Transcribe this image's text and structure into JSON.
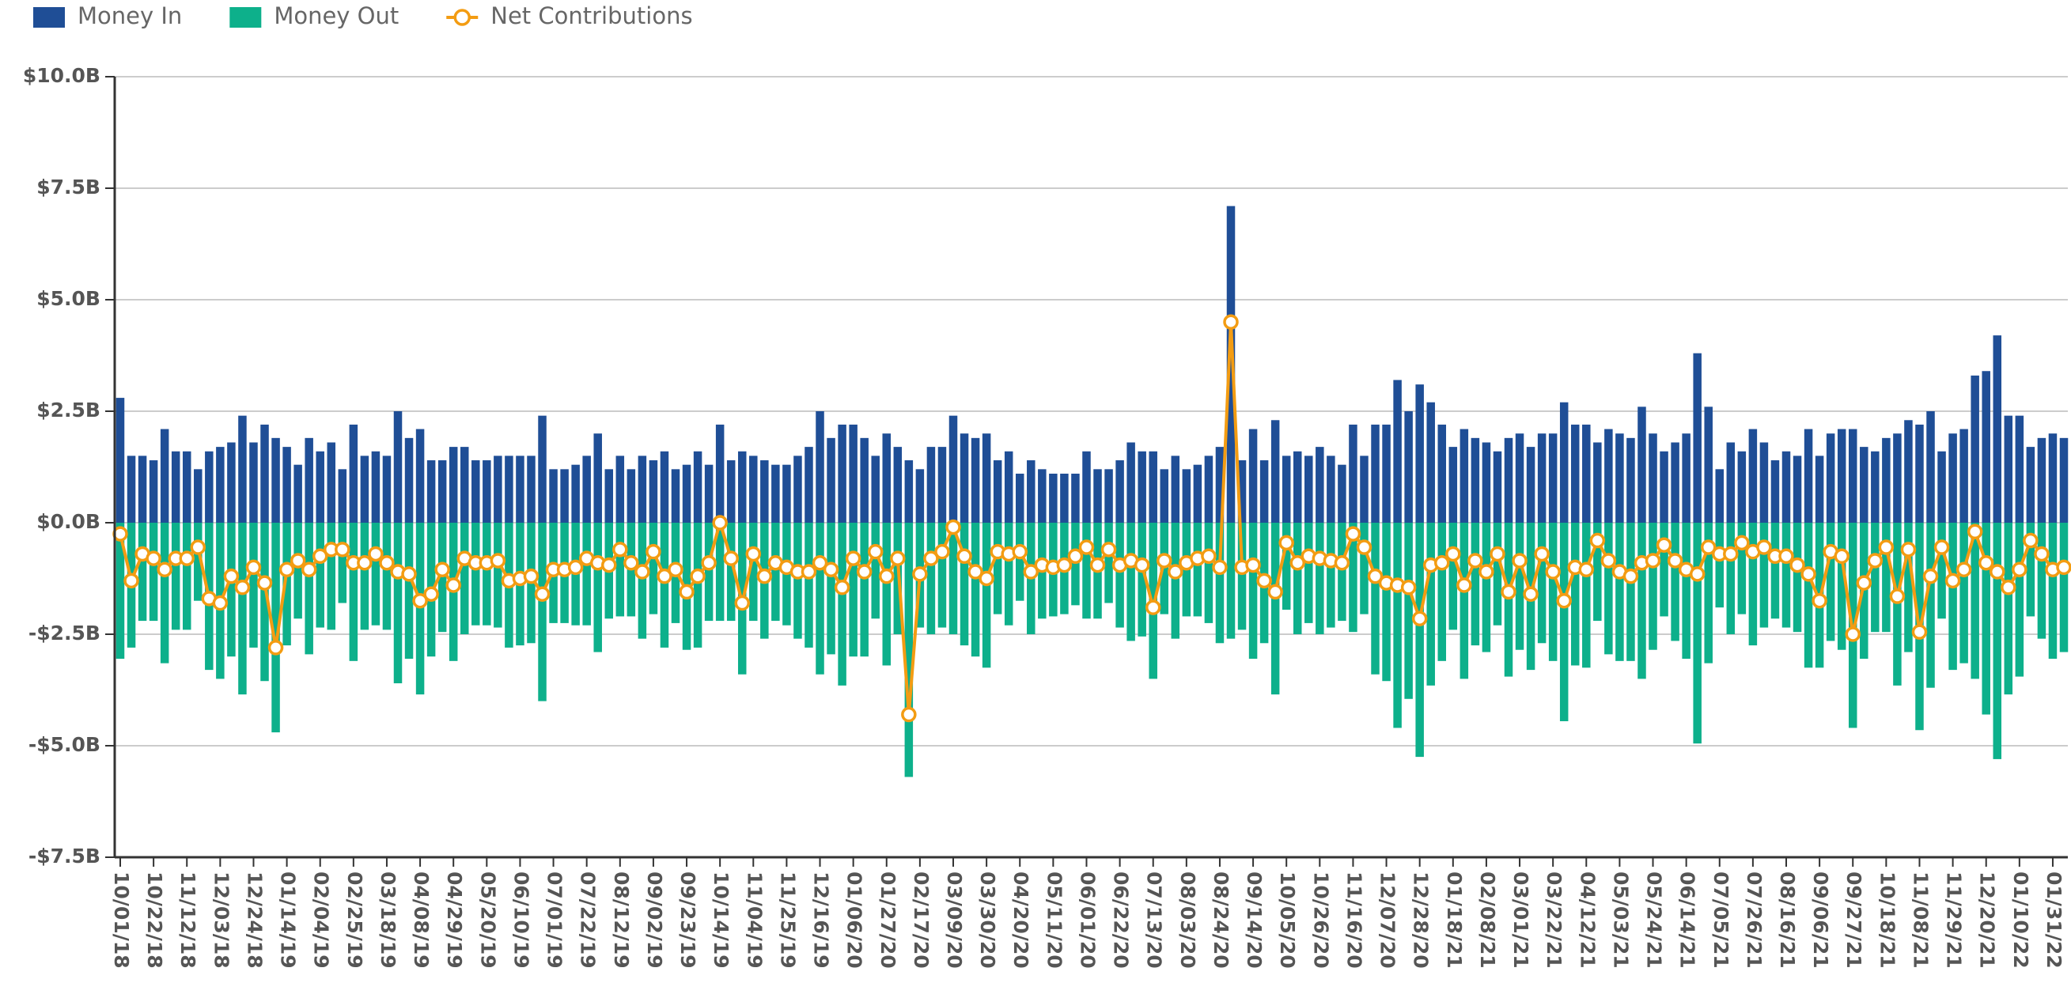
{
  "chart_data": {
    "type": "bar",
    "categories": [
      "10/01/18",
      null,
      null,
      "10/22/18",
      null,
      null,
      "11/12/18",
      null,
      null,
      "12/03/18",
      null,
      null,
      "12/24/18",
      null,
      null,
      "01/14/19",
      null,
      null,
      "02/04/19",
      null,
      null,
      "02/25/19",
      null,
      null,
      "03/18/19",
      null,
      null,
      "04/08/19",
      null,
      null,
      "04/29/19",
      null,
      null,
      "05/20/19",
      null,
      null,
      "06/10/19",
      null,
      null,
      "07/01/19",
      null,
      null,
      "07/22/19",
      null,
      null,
      "08/12/19",
      null,
      null,
      "09/02/19",
      null,
      null,
      "09/23/19",
      null,
      null,
      "10/14/19",
      null,
      null,
      "11/04/19",
      null,
      null,
      "11/25/19",
      null,
      null,
      "12/16/19",
      null,
      null,
      "01/06/20",
      null,
      null,
      "01/27/20",
      null,
      null,
      "02/17/20",
      null,
      null,
      "03/09/20",
      null,
      null,
      "03/30/20",
      null,
      null,
      "04/20/20",
      null,
      null,
      "05/11/20",
      null,
      null,
      "06/01/20",
      null,
      null,
      "06/22/20",
      null,
      null,
      "07/13/20",
      null,
      null,
      "08/03/20",
      null,
      null,
      "08/24/20",
      null,
      null,
      "09/14/20",
      null,
      null,
      "10/05/20",
      null,
      null,
      "10/26/20",
      null,
      null,
      "11/16/20",
      null,
      null,
      "12/07/20",
      null,
      null,
      "12/28/20",
      null,
      null,
      "01/18/21",
      null,
      null,
      "02/08/21",
      null,
      null,
      "03/01/21",
      null,
      null,
      "03/22/21",
      null,
      null,
      "04/12/21",
      null,
      null,
      "05/03/21",
      null,
      null,
      "05/24/21",
      null,
      null,
      "06/14/21",
      null,
      null,
      "07/05/21",
      null,
      null,
      "07/26/21",
      null,
      null,
      "08/16/21",
      null,
      null,
      "09/06/21",
      null,
      null,
      "09/27/21",
      null,
      null,
      "10/18/21",
      null,
      null,
      "11/08/21",
      null,
      null,
      "11/29/21",
      null,
      null,
      "12/20/21",
      null,
      null,
      "01/10/22",
      null,
      null,
      "01/31/22",
      null
    ],
    "series": [
      {
        "name": "Money In",
        "color": "#1f4e96",
        "type": "bar",
        "values": [
          2.8,
          1.5,
          1.5,
          1.4,
          2.1,
          1.6,
          1.6,
          1.2,
          1.6,
          1.7,
          1.8,
          2.4,
          1.8,
          2.2,
          1.9,
          1.7,
          1.3,
          1.9,
          1.6,
          1.8,
          1.2,
          2.2,
          1.5,
          1.6,
          1.5,
          2.5,
          1.9,
          2.1,
          1.4,
          1.4,
          1.7,
          1.7,
          1.4,
          1.4,
          1.5,
          1.5,
          1.5,
          1.5,
          2.4,
          1.2,
          1.2,
          1.3,
          1.5,
          2.0,
          1.2,
          1.5,
          1.2,
          1.5,
          1.4,
          1.6,
          1.2,
          1.3,
          1.6,
          1.3,
          2.2,
          1.4,
          1.6,
          1.5,
          1.4,
          1.3,
          1.3,
          1.5,
          1.7,
          2.5,
          1.9,
          2.2,
          2.2,
          1.9,
          1.5,
          2.0,
          1.7,
          1.4,
          1.2,
          1.7,
          1.7,
          2.4,
          2.0,
          1.9,
          2.0,
          1.4,
          1.6,
          1.1,
          1.4,
          1.2,
          1.1,
          1.1,
          1.1,
          1.6,
          1.2,
          1.2,
          1.4,
          1.8,
          1.6,
          1.6,
          1.2,
          1.5,
          1.2,
          1.3,
          1.5,
          1.7,
          7.1,
          1.4,
          2.1,
          1.4,
          2.3,
          1.5,
          1.6,
          1.5,
          1.7,
          1.5,
          1.3,
          2.2,
          1.5,
          2.2,
          2.2,
          3.2,
          2.5,
          3.1,
          2.7,
          2.2,
          1.7,
          2.1,
          1.9,
          1.8,
          1.6,
          1.9,
          2.0,
          1.7,
          2.0,
          2.0,
          2.7,
          2.2,
          2.2,
          1.8,
          2.1,
          2.0,
          1.9,
          2.6,
          2.0,
          1.6,
          1.8,
          2.0,
          3.8,
          2.6,
          1.2,
          1.8,
          1.6,
          2.1,
          1.8,
          1.4,
          1.6,
          1.5,
          2.1,
          1.5,
          2.0,
          2.1,
          2.1,
          1.7,
          1.6,
          1.9,
          2.0,
          2.3,
          2.2,
          2.5,
          1.6,
          2.0,
          2.1,
          3.3,
          3.4,
          4.2,
          2.4,
          2.4,
          1.7,
          1.9,
          2.0,
          1.9
        ]
      },
      {
        "name": "Money Out",
        "color": "#0db08b",
        "type": "bar",
        "values": [
          -3.05,
          -2.8,
          -2.2,
          -2.2,
          -3.15,
          -2.4,
          -2.4,
          -1.75,
          -3.3,
          -3.5,
          -3.0,
          -3.85,
          -2.8,
          -3.55,
          -4.7,
          -2.75,
          -2.15,
          -2.95,
          -2.35,
          -2.4,
          -1.8,
          -3.1,
          -2.4,
          -2.3,
          -2.4,
          -3.6,
          -3.05,
          -3.85,
          -3.0,
          -2.45,
          -3.1,
          -2.5,
          -2.3,
          -2.3,
          -2.35,
          -2.8,
          -2.75,
          -2.7,
          -4.0,
          -2.25,
          -2.25,
          -2.3,
          -2.3,
          -2.9,
          -2.15,
          -2.1,
          -2.1,
          -2.6,
          -2.05,
          -2.8,
          -2.25,
          -2.85,
          -2.8,
          -2.2,
          -2.2,
          -2.2,
          -3.4,
          -2.2,
          -2.6,
          -2.2,
          -2.3,
          -2.6,
          -2.8,
          -3.4,
          -2.95,
          -3.65,
          -3.0,
          -3.0,
          -2.15,
          -3.2,
          -2.5,
          -5.7,
          -2.35,
          -2.5,
          -2.35,
          -2.5,
          -2.75,
          -3.0,
          -3.25,
          -2.05,
          -2.3,
          -1.75,
          -2.5,
          -2.15,
          -2.1,
          -2.05,
          -1.85,
          -2.15,
          -2.15,
          -1.8,
          -2.35,
          -2.65,
          -2.55,
          -3.5,
          -2.05,
          -2.6,
          -2.1,
          -2.1,
          -2.25,
          -2.7,
          -2.6,
          -2.4,
          -3.05,
          -2.7,
          -3.85,
          -1.95,
          -2.5,
          -2.25,
          -2.5,
          -2.35,
          -2.2,
          -2.45,
          -2.05,
          -3.4,
          -3.55,
          -4.6,
          -3.95,
          -5.25,
          -3.65,
          -3.1,
          -2.4,
          -3.5,
          -2.75,
          -2.9,
          -2.3,
          -3.45,
          -2.85,
          -3.3,
          -2.7,
          -3.1,
          -4.45,
          -3.2,
          -3.25,
          -2.2,
          -2.95,
          -3.1,
          -3.1,
          -3.5,
          -2.85,
          -2.1,
          -2.65,
          -3.05,
          -4.95,
          -3.15,
          -1.9,
          -2.5,
          -2.05,
          -2.75,
          -2.35,
          -2.15,
          -2.35,
          -2.45,
          -3.25,
          -3.25,
          -2.65,
          -2.85,
          -4.6,
          -3.05,
          -2.45,
          -2.45,
          -3.65,
          -2.9,
          -4.65,
          -3.7,
          -2.15,
          -3.3,
          -3.15,
          -3.5,
          -4.3,
          -5.3,
          -3.85,
          -3.45,
          -2.1,
          -2.6,
          -3.05,
          -2.9
        ]
      },
      {
        "name": "Net Contributions",
        "color": "#f39c12",
        "type": "line",
        "values": [
          -0.25,
          -1.3,
          -0.7,
          -0.8,
          -1.05,
          -0.8,
          -0.8,
          -0.55,
          -1.7,
          -1.8,
          -1.2,
          -1.45,
          -1.0,
          -1.35,
          -2.8,
          -1.05,
          -0.85,
          -1.05,
          -0.75,
          -0.6,
          -0.6,
          -0.9,
          -0.9,
          -0.7,
          -0.9,
          -1.1,
          -1.15,
          -1.75,
          -1.6,
          -1.05,
          -1.4,
          -0.8,
          -0.9,
          -0.9,
          -0.85,
          -1.3,
          -1.25,
          -1.2,
          -1.6,
          -1.05,
          -1.05,
          -1.0,
          -0.8,
          -0.9,
          -0.95,
          -0.6,
          -0.9,
          -1.1,
          -0.65,
          -1.2,
          -1.05,
          -1.55,
          -1.2,
          -0.9,
          0.0,
          -0.8,
          -1.8,
          -0.7,
          -1.2,
          -0.9,
          -1.0,
          -1.1,
          -1.1,
          -0.9,
          -1.05,
          -1.45,
          -0.8,
          -1.1,
          -0.65,
          -1.2,
          -0.8,
          -4.3,
          -1.15,
          -0.8,
          -0.65,
          -0.1,
          -0.75,
          -1.1,
          -1.25,
          -0.65,
          -0.7,
          -0.65,
          -1.1,
          -0.95,
          -1.0,
          -0.95,
          -0.75,
          -0.55,
          -0.95,
          -0.6,
          -0.95,
          -0.85,
          -0.95,
          -1.9,
          -0.85,
          -1.1,
          -0.9,
          -0.8,
          -0.75,
          -1.0,
          4.5,
          -1.0,
          -0.95,
          -1.3,
          -1.55,
          -0.45,
          -0.9,
          -0.75,
          -0.8,
          -0.85,
          -0.9,
          -0.25,
          -0.55,
          -1.2,
          -1.35,
          -1.4,
          -1.45,
          -2.15,
          -0.95,
          -0.9,
          -0.7,
          -1.4,
          -0.85,
          -1.1,
          -0.7,
          -1.55,
          -0.85,
          -1.6,
          -0.7,
          -1.1,
          -1.75,
          -1.0,
          -1.05,
          -0.4,
          -0.85,
          -1.1,
          -1.2,
          -0.9,
          -0.85,
          -0.5,
          -0.85,
          -1.05,
          -1.15,
          -0.55,
          -0.7,
          -0.7,
          -0.45,
          -0.65,
          -0.55,
          -0.75,
          -0.75,
          -0.95,
          -1.15,
          -1.75,
          -0.65,
          -0.75,
          -2.5,
          -1.35,
          -0.85,
          -0.55,
          -1.65,
          -0.6,
          -2.45,
          -1.2,
          -0.55,
          -1.3,
          -1.05,
          -0.2,
          -0.9,
          -1.1,
          -1.45,
          -1.05,
          -0.4,
          -0.7,
          -1.05,
          -1.0
        ]
      }
    ],
    "ylim": [
      -7.5,
      10
    ],
    "yticks": [
      {
        "value": -7.5,
        "label": "-$7.5B"
      },
      {
        "value": -5,
        "label": "-$5.0B"
      },
      {
        "value": -2.5,
        "label": "-$2.5B"
      },
      {
        "value": 0,
        "label": "$0.0B"
      },
      {
        "value": 2.5,
        "label": "$2.5B"
      },
      {
        "value": 5,
        "label": "$5.0B"
      },
      {
        "value": 7.5,
        "label": "$7.5B"
      },
      {
        "value": 10,
        "label": "$10.0B"
      }
    ],
    "grid": true,
    "legend": "top-left"
  }
}
